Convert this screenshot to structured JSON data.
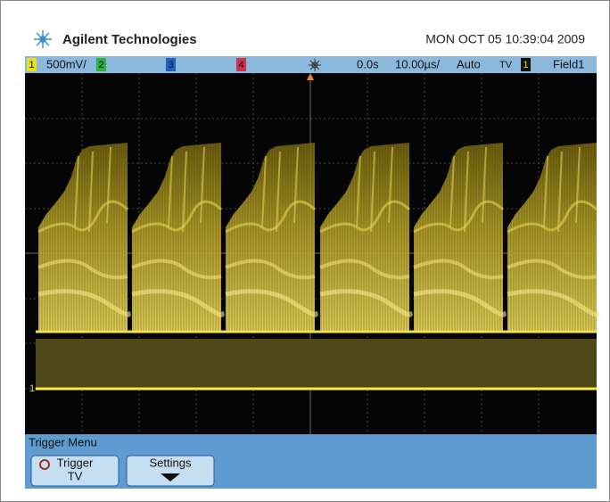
{
  "header": {
    "brand": "Agilent Technologies",
    "datetime": "MON OCT 05 10:39:04 2009"
  },
  "status_bar": {
    "channel1": "1",
    "channel1_scale": "500mV/",
    "channel2": "2",
    "channel3": "3",
    "channel4": "4",
    "time_offset": "0.0s",
    "time_scale": "10.00µs/",
    "trigger_mode": "Auto",
    "trigger_type": "TV",
    "trigger_source": "1",
    "trigger_field": "Field1"
  },
  "graticule": {
    "channel_marker": "1"
  },
  "softkeys": {
    "menu_title": "Trigger Menu",
    "button1_line1": "Trigger",
    "button1_line2": "TV",
    "button2": "Settings"
  }
}
